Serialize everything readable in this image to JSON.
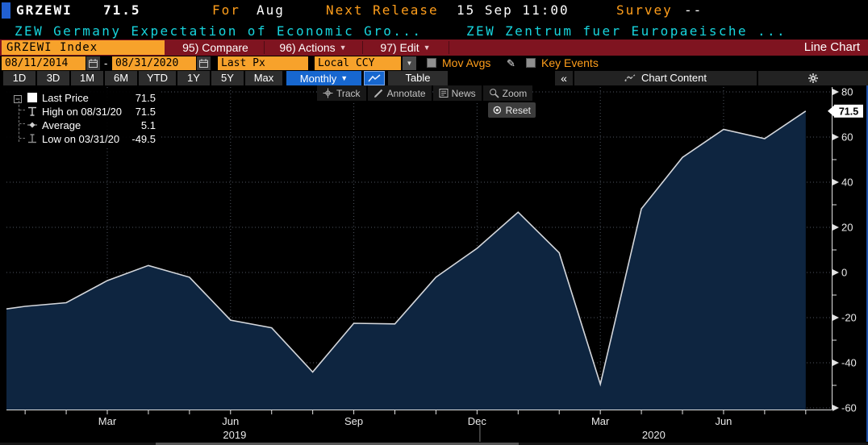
{
  "header": {
    "ticker": "GRZEWI",
    "last_value": "71.5",
    "period_label": "For",
    "period_value": "Aug",
    "next_release_label": "Next Release",
    "next_release_value": "15 Sep 11:00",
    "survey_label": "Survey",
    "survey_value": "--",
    "description": "ZEW Germany Expectation of Economic Gro...",
    "source": "ZEW Zentrum fuer Europaeische ..."
  },
  "security_bar": {
    "security": "GRZEWI Index",
    "compare": "95) Compare",
    "actions": "96) Actions",
    "edit": "97) Edit",
    "view": "Line Chart"
  },
  "settings_bar": {
    "date_from": "08/11/2014",
    "date_sep": "-",
    "date_to": "08/31/2020",
    "price_field": "Last Px",
    "currency": "Local CCY",
    "mov_avgs": "Mov Avgs",
    "key_events": "Key Events"
  },
  "period_bar": {
    "periods": [
      "1D",
      "3D",
      "1M",
      "6M",
      "YTD",
      "1Y",
      "5Y",
      "Max"
    ],
    "frequency": "Monthly",
    "table": "Table",
    "collapse": "«",
    "chart_content": "Chart Content"
  },
  "chart_toolbar": {
    "tools": [
      "Track",
      "Annotate",
      "News",
      "Zoom"
    ],
    "reset": "Reset"
  },
  "legend": {
    "rows": [
      {
        "marker": "last-price-swatch",
        "label": "Last Price",
        "value": "71.5"
      },
      {
        "marker": "high-marker",
        "label": "High on 08/31/20",
        "value": "71.5"
      },
      {
        "marker": "average-marker",
        "label": "Average",
        "value": "5.1"
      },
      {
        "marker": "low-marker",
        "label": "Low on 03/31/20",
        "value": "-49.5"
      }
    ]
  },
  "chart_data": {
    "type": "area",
    "series_name": "Last Price",
    "x": [
      "Dec 2018",
      "Jan 2019",
      "Feb 2019",
      "Mar 2019",
      "Apr 2019",
      "May 2019",
      "Jun 2019",
      "Jul 2019",
      "Aug 2019",
      "Sep 2019",
      "Oct 2019",
      "Nov 2019",
      "Dec 2019",
      "Jan 2020",
      "Feb 2020",
      "Mar 2020",
      "Apr 2020",
      "May 2020",
      "Jun 2020",
      "Jul 2020",
      "Aug 2020"
    ],
    "values": [
      -17.5,
      -15.0,
      -13.4,
      -3.6,
      3.1,
      -2.1,
      -21.1,
      -24.5,
      -44.1,
      -22.5,
      -22.8,
      -2.1,
      10.7,
      26.7,
      8.7,
      -49.5,
      28.2,
      51.0,
      63.4,
      59.3,
      71.5
    ],
    "ylim": [
      -60,
      80
    ],
    "yticks": [
      80,
      60,
      40,
      20,
      0,
      -20,
      -40,
      -60
    ],
    "yticks_minor": [
      70,
      50,
      30,
      10,
      -10,
      -30,
      -50
    ],
    "xticks": [
      {
        "index": 3,
        "label": "Mar"
      },
      {
        "index": 6,
        "label": "Jun"
      },
      {
        "index": 9,
        "label": "Sep"
      },
      {
        "index": 12,
        "label": "Dec"
      },
      {
        "index": 15,
        "label": "Mar"
      },
      {
        "index": 18,
        "label": "Jun"
      }
    ],
    "year_labels": [
      {
        "index": 6.1,
        "label": "2019"
      },
      {
        "index": 16.3,
        "label": "2020"
      }
    ],
    "year_divider_index": 12.07,
    "last_price_badge": "71.5",
    "grid": true,
    "legend_position": "top-left"
  },
  "colors": {
    "background": "#000000",
    "amber": "#ff9e1b",
    "amberbg": "#f7a22b",
    "maroon": "#7f1420",
    "blue": "#1767cf",
    "cyan": "#17d4dd",
    "chart_line": "#d4d7dc",
    "chart_fill": "#0e2540",
    "grid_line": "#4e5560",
    "axis": "#e2e2e2"
  }
}
